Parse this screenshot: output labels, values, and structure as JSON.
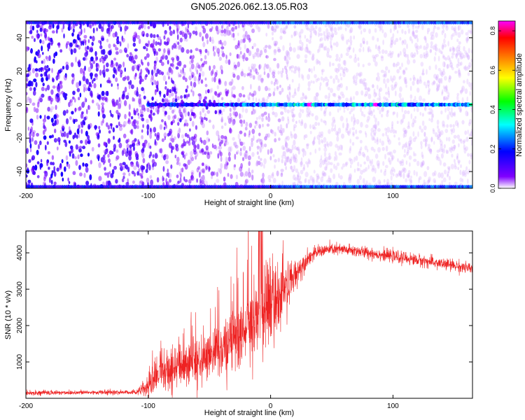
{
  "title": "GN05.2026.062.13.05.R03",
  "chart_data": [
    {
      "type": "heatmap",
      "xlabel": "Height of straight line (km)",
      "ylabel": "Frequency (Hz)",
      "xlim": [
        -200,
        165
      ],
      "ylim": [
        -50,
        50
      ],
      "xticks": [
        -200,
        -100,
        0,
        100
      ],
      "yticks": [
        -40,
        -20,
        0,
        20,
        40
      ],
      "colorbar": {
        "label": "Normalized spectral amplitude",
        "range": [
          0,
          0.85
        ],
        "ticks": [
          0.0,
          0.2,
          0.4,
          0.6,
          0.8
        ],
        "colors": [
          "#ffffff",
          "#8000ff",
          "#0000ff",
          "#00ffff",
          "#00ff00",
          "#ffff00",
          "#ff8000",
          "#ff0000",
          "#ff00ff"
        ]
      },
      "features": [
        {
          "name": "",
          "frequency_hz": 0,
          "x_start_km": -100,
          "x_end_km": 165,
          "peak_amplitude": 0.85,
          "peak_x_km": [
            32,
            86
          ]
        },
        {
          "name": "",
          "frequency_hz": 49,
          "x_start_km": -200,
          "x_end_km": 165
        },
        {
          "name": "",
          "frequency_hz": -49,
          "x_start_km": -200,
          "x_end_km": 165
        }
      ],
      "grid": false
    },
    {
      "type": "line",
      "xlabel": "Height of straight line (km)",
      "ylabel": "SNR (10 * v/v)",
      "xlim": [
        -200,
        165
      ],
      "ylim": [
        0,
        4600
      ],
      "xticks": [
        -200,
        -100,
        0,
        100
      ],
      "yticks": [
        1000,
        2000,
        3000,
        4000
      ],
      "series": [
        {
          "color": "#ee2222",
          "envelope_x": [
            -200,
            -110,
            -100,
            -90,
            -80,
            -70,
            -60,
            -50,
            -40,
            -30,
            -20,
            -10,
            0,
            10,
            20,
            30,
            40,
            50,
            60,
            70,
            80,
            90,
            100,
            110,
            120,
            130,
            140,
            150,
            165
          ],
          "envelope_y": [
            150,
            170,
            300,
            600,
            800,
            900,
            1000,
            1100,
            1300,
            1600,
            1900,
            2200,
            2500,
            2900,
            3400,
            3850,
            4050,
            4100,
            4080,
            4050,
            4000,
            3950,
            3900,
            3850,
            3800,
            3750,
            3700,
            3650,
            3550
          ],
          "noise_y": [
            60,
            60,
            250,
            450,
            500,
            500,
            550,
            550,
            650,
            800,
            900,
            1000,
            1000,
            800,
            400,
            200,
            150,
            150,
            150,
            150,
            150,
            150,
            150,
            150,
            150,
            150,
            150,
            150,
            150
          ]
        }
      ],
      "grid": false
    }
  ]
}
